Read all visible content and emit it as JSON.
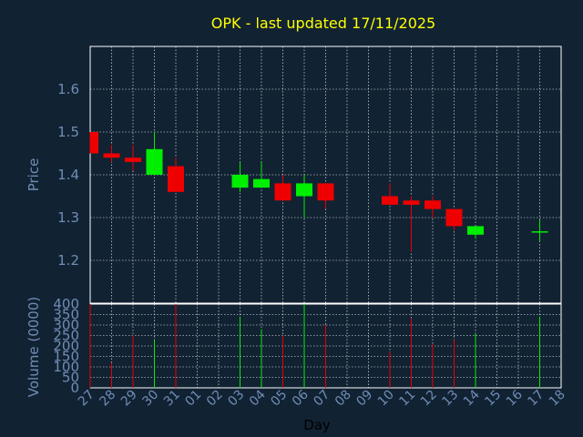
{
  "chart_data": {
    "type": "candlestick",
    "title": "OPK - last updated 17/11/2025",
    "xlabel": "Day",
    "price_ylabel": "Price",
    "volume_ylabel": "Volume (0000)",
    "x_ticks": [
      "27",
      "28",
      "29",
      "30",
      "31",
      "01",
      "02",
      "03",
      "04",
      "05",
      "06",
      "07",
      "08",
      "09",
      "10",
      "11",
      "12",
      "13",
      "14",
      "15",
      "16",
      "17",
      "18"
    ],
    "price_ylim": [
      1.1,
      1.7
    ],
    "price_ticks": [
      "1.2",
      "1.3",
      "1.4",
      "1.5",
      "1.6"
    ],
    "volume_ylim": [
      0,
      400
    ],
    "volume_ticks": [
      "0",
      "50",
      "100",
      "150",
      "200",
      "250",
      "300",
      "350",
      "400"
    ],
    "colors": {
      "up": "#00ee00",
      "down": "#ee0000",
      "title": "#ffff00",
      "axis": "#6f8db4",
      "grid": "#ffffff"
    },
    "candles": [
      {
        "x": "27",
        "open": 1.5,
        "high": 1.5,
        "low": 1.45,
        "close": 1.45,
        "volume": 400
      },
      {
        "x": "28",
        "open": 1.45,
        "high": 1.47,
        "low": 1.43,
        "close": 1.44,
        "volume": 120
      },
      {
        "x": "29",
        "open": 1.44,
        "high": 1.47,
        "low": 1.41,
        "close": 1.43,
        "volume": 250
      },
      {
        "x": "30",
        "open": 1.4,
        "high": 1.5,
        "low": 1.4,
        "close": 1.46,
        "volume": 230
      },
      {
        "x": "31",
        "open": 1.42,
        "high": 1.44,
        "low": 1.36,
        "close": 1.36,
        "volume": 400
      },
      {
        "x": "03",
        "open": 1.37,
        "high": 1.43,
        "low": 1.36,
        "close": 1.4,
        "volume": 340
      },
      {
        "x": "04",
        "open": 1.37,
        "high": 1.43,
        "low": 1.37,
        "close": 1.39,
        "volume": 280
      },
      {
        "x": "05",
        "open": 1.38,
        "high": 1.4,
        "low": 1.34,
        "close": 1.34,
        "volume": 250
      },
      {
        "x": "06",
        "open": 1.35,
        "high": 1.4,
        "low": 1.3,
        "close": 1.38,
        "volume": 400
      },
      {
        "x": "07",
        "open": 1.38,
        "high": 1.38,
        "low": 1.32,
        "close": 1.34,
        "volume": 300
      },
      {
        "x": "10",
        "open": 1.35,
        "high": 1.38,
        "low": 1.33,
        "close": 1.33,
        "volume": 170
      },
      {
        "x": "11",
        "open": 1.34,
        "high": 1.35,
        "low": 1.22,
        "close": 1.33,
        "volume": 330
      },
      {
        "x": "12",
        "open": 1.34,
        "high": 1.35,
        "low": 1.3,
        "close": 1.32,
        "volume": 210
      },
      {
        "x": "13",
        "open": 1.32,
        "high": 1.32,
        "low": 1.27,
        "close": 1.28,
        "volume": 230
      },
      {
        "x": "14",
        "open": 1.26,
        "high": 1.28,
        "low": 1.25,
        "close": 1.28,
        "volume": 260
      },
      {
        "x": "17",
        "open": 1.265,
        "high": 1.295,
        "low": 1.245,
        "close": 1.268,
        "volume": 340
      }
    ]
  }
}
